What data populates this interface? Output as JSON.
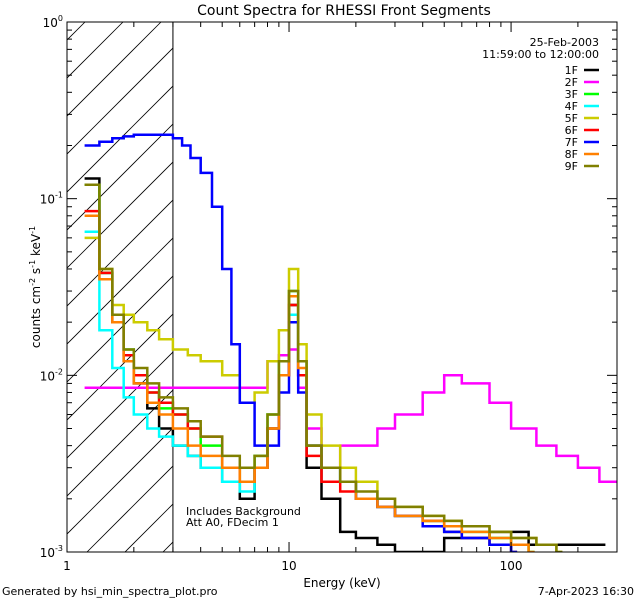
{
  "chart_data": {
    "type": "line",
    "title": "Count Spectra for RHESSI Front Segments",
    "xlabel": "Energy (keV)",
    "ylabel_main": "counts cm",
    "ylabel_exp1": "-2",
    "ylabel_mid": " s",
    "ylabel_exp2": "-1",
    "ylabel_end": " keV",
    "ylabel_exp3": "-1",
    "x_scale": "log",
    "y_scale": "log",
    "xlim": [
      1.0,
      300.0
    ],
    "ylim": [
      0.001,
      1.0
    ],
    "x_ticks": [
      {
        "value": 1,
        "label": "1"
      },
      {
        "value": 10,
        "label": "10"
      },
      {
        "value": 100,
        "label": "100"
      }
    ],
    "y_ticks": [
      {
        "value": 0.001,
        "base": "10",
        "exp": "-3"
      },
      {
        "value": 0.01,
        "base": "10",
        "exp": "-2"
      },
      {
        "value": 0.1,
        "base": "10",
        "exp": "-1"
      },
      {
        "value": 1,
        "base": "10",
        "exp": "0"
      }
    ],
    "date": "25-Feb-2003",
    "time_range": "11:59:00 to 12:00:00",
    "annotation_line1": "Includes Background",
    "annotation_line2": "Att A0, FDecim 1",
    "attenuator_cutoff_keV": 3.0,
    "legend_position": "top-right",
    "series": [
      {
        "name": "1F",
        "color": "#000000",
        "points": [
          [
            1.2,
            0.13
          ],
          [
            1.4,
            0.038
          ],
          [
            1.6,
            0.02
          ],
          [
            1.8,
            0.012
          ],
          [
            2.0,
            0.009
          ],
          [
            2.3,
            0.0065
          ],
          [
            2.6,
            0.005
          ],
          [
            3.0,
            0.004
          ],
          [
            3.5,
            0.0035
          ],
          [
            4.0,
            0.003
          ],
          [
            5.0,
            0.0025
          ],
          [
            6.0,
            0.002
          ],
          [
            7.0,
            0.003
          ],
          [
            8.0,
            0.005
          ],
          [
            9.0,
            0.01
          ],
          [
            10.0,
            0.025
          ],
          [
            11.0,
            0.01
          ],
          [
            12.0,
            0.003
          ],
          [
            14.0,
            0.002
          ],
          [
            17.0,
            0.0013
          ],
          [
            20.0,
            0.0012
          ],
          [
            25.0,
            0.0011
          ],
          [
            30.0,
            0.001
          ],
          [
            50.0,
            0.0012
          ],
          [
            80.0,
            0.0013
          ],
          [
            120.0,
            0.0011
          ],
          [
            200.0,
            0.0011
          ],
          [
            250.0,
            0.0011
          ]
        ]
      },
      {
        "name": "2F",
        "color": "#ff00ff",
        "points": [
          [
            1.2,
            0.0085
          ],
          [
            1.4,
            0.0085
          ],
          [
            1.6,
            0.0085
          ],
          [
            1.8,
            0.0085
          ],
          [
            2.0,
            0.0085
          ],
          [
            2.3,
            0.0085
          ],
          [
            2.6,
            0.0085
          ],
          [
            3.0,
            0.0085
          ],
          [
            3.5,
            0.0085
          ],
          [
            4.0,
            0.0085
          ],
          [
            5.0,
            0.0085
          ],
          [
            6.0,
            0.0085
          ],
          [
            7.0,
            0.0085
          ],
          [
            8.0,
            0.012
          ],
          [
            9.0,
            0.013
          ],
          [
            10.0,
            0.014
          ],
          [
            11.0,
            0.0085
          ],
          [
            12.0,
            0.005
          ],
          [
            14.0,
            0.003
          ],
          [
            17.0,
            0.004
          ],
          [
            20.0,
            0.004
          ],
          [
            25.0,
            0.005
          ],
          [
            30.0,
            0.006
          ],
          [
            40.0,
            0.008
          ],
          [
            50.0,
            0.01
          ],
          [
            60.0,
            0.009
          ],
          [
            80.0,
            0.007
          ],
          [
            100.0,
            0.005
          ],
          [
            130.0,
            0.004
          ],
          [
            160.0,
            0.0035
          ],
          [
            200.0,
            0.003
          ],
          [
            250.0,
            0.0025
          ],
          [
            300.0,
            0.0025
          ]
        ]
      },
      {
        "name": "3F",
        "color": "#00ff00",
        "points": [
          [
            1.2,
            0.12
          ],
          [
            1.4,
            0.038
          ],
          [
            1.6,
            0.022
          ],
          [
            1.8,
            0.014
          ],
          [
            2.0,
            0.01
          ],
          [
            2.3,
            0.008
          ],
          [
            2.6,
            0.0065
          ],
          [
            3.0,
            0.006
          ],
          [
            3.5,
            0.005
          ],
          [
            4.0,
            0.004
          ],
          [
            5.0,
            0.003
          ],
          [
            6.0,
            0.0025
          ],
          [
            7.0,
            0.0035
          ],
          [
            8.0,
            0.006
          ],
          [
            9.0,
            0.012
          ],
          [
            10.0,
            0.03
          ],
          [
            11.0,
            0.012
          ],
          [
            12.0,
            0.004
          ],
          [
            14.0,
            0.003
          ],
          [
            17.0,
            0.0025
          ],
          [
            20.0,
            0.002
          ],
          [
            25.0,
            0.0018
          ],
          [
            30.0,
            0.0016
          ],
          [
            40.0,
            0.0015
          ],
          [
            50.0,
            0.0014
          ],
          [
            60.0,
            0.0013
          ],
          [
            80.0,
            0.0012
          ],
          [
            100.0,
            0.0011
          ],
          [
            120.0,
            0.001
          ]
        ]
      },
      {
        "name": "4F",
        "color": "#00ffff",
        "points": [
          [
            1.2,
            0.065
          ],
          [
            1.4,
            0.018
          ],
          [
            1.6,
            0.011
          ],
          [
            1.8,
            0.0075
          ],
          [
            2.0,
            0.006
          ],
          [
            2.3,
            0.005
          ],
          [
            2.6,
            0.0045
          ],
          [
            3.0,
            0.004
          ],
          [
            3.5,
            0.0035
          ],
          [
            4.0,
            0.003
          ],
          [
            5.0,
            0.0025
          ],
          [
            6.0,
            0.0022
          ],
          [
            7.0,
            0.003
          ],
          [
            8.0,
            0.005
          ],
          [
            9.0,
            0.01
          ],
          [
            10.0,
            0.022
          ],
          [
            11.0,
            0.01
          ],
          [
            12.0,
            0.004
          ],
          [
            14.0,
            0.003
          ],
          [
            17.0,
            0.0025
          ],
          [
            20.0,
            0.002
          ],
          [
            25.0,
            0.0018
          ],
          [
            30.0,
            0.0016
          ],
          [
            40.0,
            0.0015
          ],
          [
            50.0,
            0.0013
          ],
          [
            60.0,
            0.0012
          ],
          [
            80.0,
            0.0011
          ],
          [
            100.0,
            0.001
          ]
        ]
      },
      {
        "name": "5F",
        "color": "#cccc00",
        "points": [
          [
            1.2,
            0.06
          ],
          [
            1.4,
            0.04
          ],
          [
            1.6,
            0.025
          ],
          [
            1.8,
            0.022
          ],
          [
            2.0,
            0.02
          ],
          [
            2.3,
            0.018
          ],
          [
            2.6,
            0.016
          ],
          [
            3.0,
            0.014
          ],
          [
            3.5,
            0.013
          ],
          [
            4.0,
            0.012
          ],
          [
            5.0,
            0.01
          ],
          [
            6.0,
            0.007
          ],
          [
            7.0,
            0.008
          ],
          [
            8.0,
            0.012
          ],
          [
            9.0,
            0.018
          ],
          [
            10.0,
            0.04
          ],
          [
            11.0,
            0.015
          ],
          [
            12.0,
            0.006
          ],
          [
            14.0,
            0.004
          ],
          [
            17.0,
            0.003
          ],
          [
            20.0,
            0.0025
          ],
          [
            25.0,
            0.002
          ],
          [
            30.0,
            0.0018
          ],
          [
            40.0,
            0.0016
          ],
          [
            50.0,
            0.0015
          ],
          [
            60.0,
            0.0014
          ],
          [
            80.0,
            0.0013
          ],
          [
            100.0,
            0.0012
          ],
          [
            130.0,
            0.0011
          ],
          [
            160.0,
            0.001
          ]
        ]
      },
      {
        "name": "6F",
        "color": "#ff0000",
        "points": [
          [
            1.2,
            0.085
          ],
          [
            1.4,
            0.038
          ],
          [
            1.6,
            0.022
          ],
          [
            1.8,
            0.013
          ],
          [
            2.0,
            0.01
          ],
          [
            2.3,
            0.008
          ],
          [
            2.6,
            0.007
          ],
          [
            3.0,
            0.006
          ],
          [
            3.5,
            0.005
          ],
          [
            4.0,
            0.0045
          ],
          [
            5.0,
            0.003
          ],
          [
            6.0,
            0.0025
          ],
          [
            7.0,
            0.003
          ],
          [
            8.0,
            0.005
          ],
          [
            9.0,
            0.01
          ],
          [
            10.0,
            0.025
          ],
          [
            11.0,
            0.01
          ],
          [
            12.0,
            0.0035
          ],
          [
            14.0,
            0.0025
          ],
          [
            17.0,
            0.0022
          ],
          [
            20.0,
            0.002
          ],
          [
            25.0,
            0.0018
          ],
          [
            30.0,
            0.0016
          ],
          [
            40.0,
            0.0015
          ],
          [
            50.0,
            0.0013
          ],
          [
            60.0,
            0.0012
          ],
          [
            80.0,
            0.0011
          ],
          [
            100.0,
            0.001
          ]
        ]
      },
      {
        "name": "7F",
        "color": "#0000ff",
        "points": [
          [
            1.2,
            0.2
          ],
          [
            1.4,
            0.21
          ],
          [
            1.6,
            0.22
          ],
          [
            1.8,
            0.225
          ],
          [
            2.0,
            0.23
          ],
          [
            2.3,
            0.23
          ],
          [
            2.6,
            0.23
          ],
          [
            3.0,
            0.22
          ],
          [
            3.3,
            0.2
          ],
          [
            3.6,
            0.17
          ],
          [
            4.0,
            0.14
          ],
          [
            4.5,
            0.09
          ],
          [
            5.0,
            0.04
          ],
          [
            5.5,
            0.015
          ],
          [
            6.0,
            0.007
          ],
          [
            7.0,
            0.004
          ],
          [
            8.0,
            0.004
          ],
          [
            9.0,
            0.008
          ],
          [
            10.0,
            0.02
          ],
          [
            11.0,
            0.008
          ],
          [
            12.0,
            0.004
          ],
          [
            14.0,
            0.003
          ],
          [
            17.0,
            0.0025
          ],
          [
            20.0,
            0.002
          ],
          [
            25.0,
            0.0018
          ],
          [
            30.0,
            0.0016
          ],
          [
            40.0,
            0.0014
          ],
          [
            50.0,
            0.0013
          ],
          [
            60.0,
            0.0012
          ],
          [
            80.0,
            0.0011
          ],
          [
            100.0,
            0.001
          ]
        ]
      },
      {
        "name": "8F",
        "color": "#ff8000",
        "points": [
          [
            1.2,
            0.08
          ],
          [
            1.4,
            0.035
          ],
          [
            1.6,
            0.02
          ],
          [
            1.8,
            0.012
          ],
          [
            2.0,
            0.009
          ],
          [
            2.3,
            0.007
          ],
          [
            2.6,
            0.006
          ],
          [
            3.0,
            0.005
          ],
          [
            3.5,
            0.004
          ],
          [
            4.0,
            0.0035
          ],
          [
            5.0,
            0.003
          ],
          [
            6.0,
            0.0025
          ],
          [
            7.0,
            0.003
          ],
          [
            8.0,
            0.005
          ],
          [
            9.0,
            0.01
          ],
          [
            10.0,
            0.028
          ],
          [
            11.0,
            0.011
          ],
          [
            12.0,
            0.004
          ],
          [
            14.0,
            0.003
          ],
          [
            17.0,
            0.0025
          ],
          [
            20.0,
            0.002
          ],
          [
            25.0,
            0.0018
          ],
          [
            30.0,
            0.0016
          ],
          [
            40.0,
            0.0015
          ],
          [
            50.0,
            0.0014
          ],
          [
            60.0,
            0.0013
          ],
          [
            80.0,
            0.0012
          ],
          [
            100.0,
            0.0011
          ],
          [
            120.0,
            0.001
          ]
        ]
      },
      {
        "name": "9F",
        "color": "#808000",
        "points": [
          [
            1.2,
            0.12
          ],
          [
            1.4,
            0.04
          ],
          [
            1.6,
            0.022
          ],
          [
            1.8,
            0.014
          ],
          [
            2.0,
            0.011
          ],
          [
            2.3,
            0.009
          ],
          [
            2.6,
            0.0075
          ],
          [
            3.0,
            0.0065
          ],
          [
            3.5,
            0.0055
          ],
          [
            4.0,
            0.0045
          ],
          [
            5.0,
            0.0035
          ],
          [
            6.0,
            0.003
          ],
          [
            7.0,
            0.0035
          ],
          [
            8.0,
            0.006
          ],
          [
            9.0,
            0.012
          ],
          [
            10.0,
            0.03
          ],
          [
            11.0,
            0.012
          ],
          [
            12.0,
            0.004
          ],
          [
            14.0,
            0.003
          ],
          [
            17.0,
            0.0025
          ],
          [
            20.0,
            0.0022
          ],
          [
            25.0,
            0.002
          ],
          [
            30.0,
            0.0018
          ],
          [
            40.0,
            0.0016
          ],
          [
            50.0,
            0.0015
          ],
          [
            60.0,
            0.0014
          ],
          [
            80.0,
            0.0013
          ],
          [
            100.0,
            0.0012
          ],
          [
            130.0,
            0.0011
          ],
          [
            160.0,
            0.001
          ]
        ]
      }
    ]
  },
  "footer": {
    "generator": "Generated by hsi_min_spectra_plot.pro",
    "timestamp": "7-Apr-2023 16:30"
  }
}
